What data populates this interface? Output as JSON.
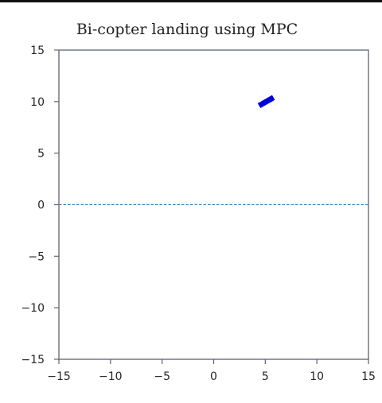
{
  "chart_data": {
    "type": "line",
    "title": "Bi-copter landing  using MPC",
    "xlabel": "",
    "ylabel": "",
    "xlim": [
      -15,
      15
    ],
    "ylim": [
      -15,
      15
    ],
    "xticks": [
      -15,
      -10,
      -5,
      0,
      5,
      10,
      15
    ],
    "yticks": [
      -15,
      -10,
      -5,
      0,
      5,
      10,
      15
    ],
    "xtick_labels": [
      "−15",
      "−10",
      "−5",
      "0",
      "5",
      "10",
      "15"
    ],
    "ytick_labels": [
      "−15",
      "−10",
      "−5",
      "0",
      "5",
      "10",
      "15"
    ],
    "grid": false,
    "series": [
      {
        "color": "#0000dd",
        "style": "solid",
        "x": [
          4.4,
          5.8
        ],
        "y": [
          9.6,
          10.4
        ]
      },
      {
        "color": "#3a78a8",
        "style": "dashed",
        "x": [
          -15,
          15
        ],
        "y": [
          0,
          0
        ]
      }
    ]
  }
}
